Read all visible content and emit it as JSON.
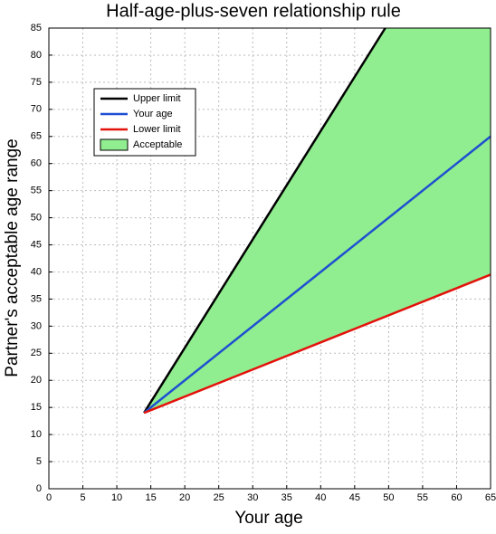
{
  "chart_data": {
    "type": "line",
    "title": "Half-age-plus-seven relationship rule",
    "x_label": "Your age",
    "y_label": "Partner's acceptable age range",
    "xlim": [
      0,
      65
    ],
    "xticks": [
      0,
      5,
      10,
      15,
      20,
      25,
      30,
      35,
      40,
      45,
      50,
      55,
      60,
      65
    ],
    "ylim": [
      0,
      85
    ],
    "yticks": [
      0,
      5,
      10,
      15,
      20,
      25,
      30,
      35,
      40,
      45,
      50,
      55,
      60,
      65,
      70,
      75,
      80,
      85
    ],
    "grid": true,
    "legend": "upper-left",
    "series": [
      {
        "name": "Upper limit",
        "color": "#000000",
        "x": [
          14,
          49.5
        ],
        "values": [
          14,
          85
        ]
      },
      {
        "name": "Your age",
        "color": "#1f4fd1",
        "x": [
          14,
          65
        ],
        "values": [
          14,
          65
        ]
      },
      {
        "name": "Lower limit",
        "color": "#e3120b",
        "x": [
          14,
          65
        ],
        "values": [
          14,
          39.5
        ]
      },
      {
        "name": "Acceptable",
        "color": "#90ee90",
        "x": [
          14,
          49.5,
          65
        ],
        "values": [
          14,
          85,
          85
        ],
        "lower": [
          14,
          31.75,
          39.5
        ]
      }
    ]
  }
}
